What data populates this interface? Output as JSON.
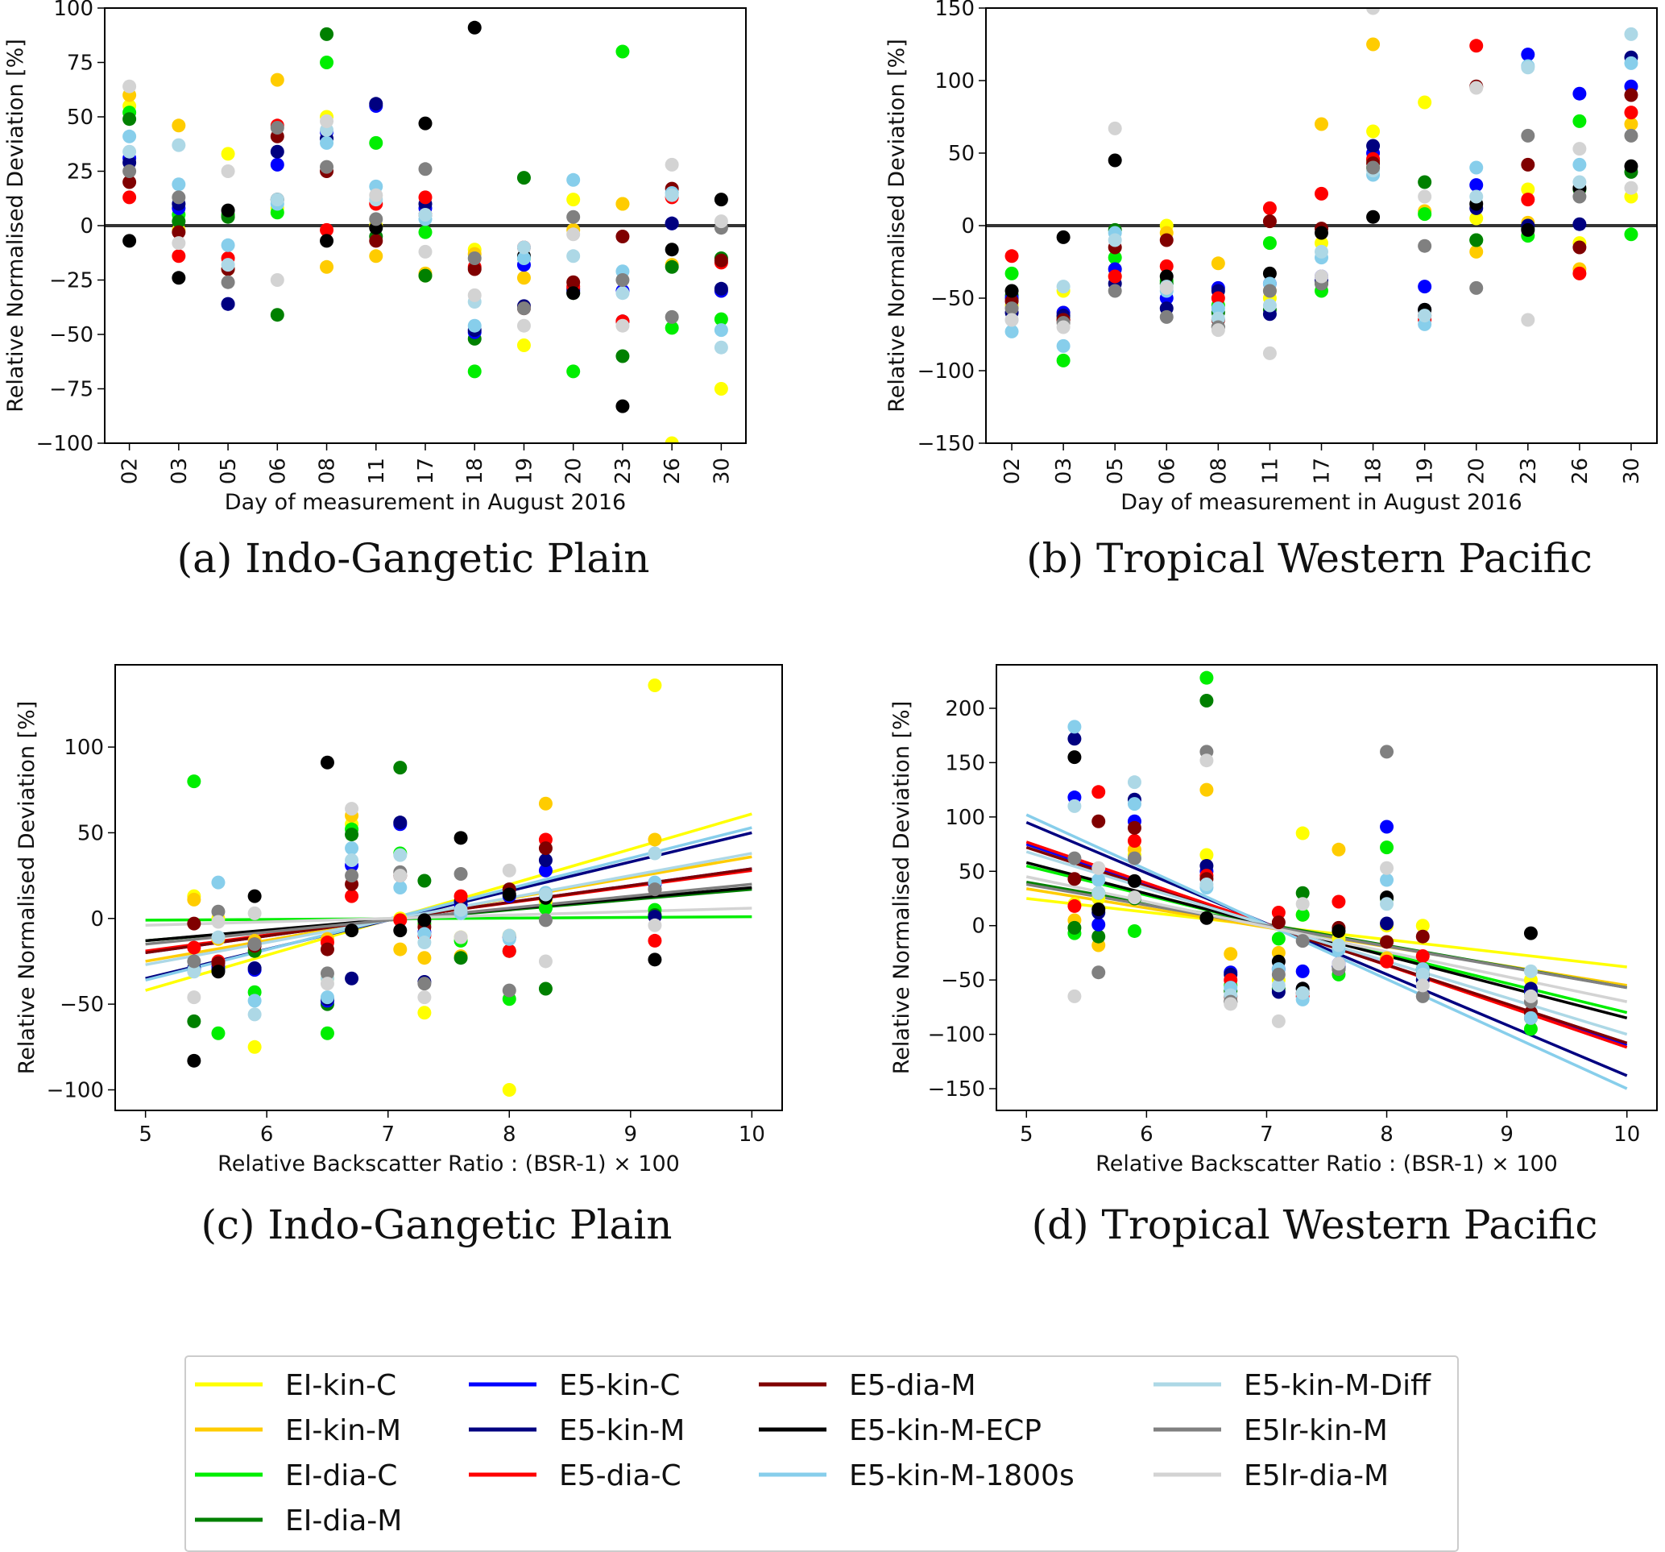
{
  "colors": {
    "EI-kin-C": "#ffff00",
    "EI-kin-M": "#ffcc00",
    "EI-dia-C": "#00ee00",
    "EI-dia-M": "#008000",
    "E5-kin-C": "#0000ff",
    "E5-kin-M": "#000080",
    "E5-dia-C": "#ff0000",
    "E5-dia-M": "#800000",
    "E5-kin-M-ECP": "#000000",
    "E5-kin-M-1800s": "#87ceeb",
    "E5-kin-M-Diff": "#add8e6",
    "E5lr-kin-M": "#808080",
    "E5lr-dia-M": "#d3d3d3"
  },
  "legend": {
    "entries": [
      "EI-kin-C",
      "EI-kin-M",
      "EI-dia-C",
      "EI-dia-M",
      "E5-kin-C",
      "E5-kin-M",
      "E5-dia-C",
      "E5-dia-M",
      "E5-kin-M-ECP",
      "E5-kin-M-1800s",
      "E5-kin-M-Diff",
      "E5lr-kin-M",
      "E5lr-dia-M"
    ]
  },
  "chart_data": [
    {
      "id": "a",
      "type": "scatter",
      "title": "(a) Indo-Gangetic Plain",
      "xlabel": "Day of measurement in August 2016",
      "ylabel": "Relative Normalised Deviation [%]",
      "categories": [
        "02",
        "03",
        "05",
        "06",
        "08",
        "11",
        "17",
        "18",
        "19",
        "20",
        "23",
        "26",
        "30"
      ],
      "ylim": [
        -100,
        100
      ],
      "yticks": [
        -100,
        -75,
        -50,
        -25,
        0,
        25,
        50,
        75,
        100
      ],
      "zero_line": true,
      "series": [
        {
          "name": "EI-kin-C",
          "values": [
            55,
            -2,
            33,
            8,
            50,
            0,
            -23,
            -11,
            -55,
            12,
            10,
            -100,
            -75
          ]
        },
        {
          "name": "EI-kin-M",
          "values": [
            60,
            46,
            -20,
            67,
            -19,
            -14,
            -22,
            -13,
            -24,
            -2,
            10,
            -18,
            -30
          ]
        },
        {
          "name": "EI-dia-C",
          "values": [
            52,
            5,
            5,
            6,
            75,
            38,
            -3,
            -67,
            -15,
            -67,
            80,
            -47,
            -43
          ]
        },
        {
          "name": "EI-dia-M",
          "values": [
            49,
            2,
            4,
            -41,
            88,
            -5,
            -23,
            -52,
            22,
            -31,
            -60,
            -19,
            -15
          ]
        },
        {
          "name": "E5-kin-C",
          "values": [
            31,
            8,
            -36,
            28,
            43,
            55,
            8,
            -49,
            -18,
            -30,
            -30,
            1,
            -30
          ]
        },
        {
          "name": "E5-kin-M",
          "values": [
            29,
            10,
            -36,
            34,
            40,
            56,
            10,
            -48,
            -37,
            -29,
            -44,
            1,
            -29
          ]
        },
        {
          "name": "E5-dia-C",
          "values": [
            13,
            -14,
            -15,
            46,
            -2,
            10,
            13,
            -19,
            -10,
            -28,
            -44,
            13,
            -17
          ]
        },
        {
          "name": "E5-dia-M",
          "values": [
            20,
            -3,
            -20,
            41,
            25,
            -7,
            5,
            -20,
            -38,
            -26,
            -5,
            17,
            -16
          ]
        },
        {
          "name": "E5-kin-M-ECP",
          "values": [
            -7,
            -24,
            7,
            12,
            -7,
            -1,
            47,
            91,
            -14,
            -31,
            -83,
            -11,
            12
          ]
        },
        {
          "name": "E5-kin-M-1800s",
          "values": [
            41,
            19,
            -9,
            10,
            38,
            18,
            3,
            -46,
            -15,
            21,
            -21,
            15,
            -48
          ]
        },
        {
          "name": "E5-kin-M-Diff",
          "values": [
            34,
            37,
            -18,
            12,
            44,
            12,
            5,
            -35,
            -10,
            -14,
            -31,
            14,
            -56
          ]
        },
        {
          "name": "E5lr-kin-M",
          "values": [
            25,
            13,
            -26,
            45,
            27,
            3,
            26,
            -15,
            -38,
            4,
            -25,
            -42,
            -1
          ]
        },
        {
          "name": "E5lr-dia-M",
          "values": [
            64,
            -8,
            25,
            -25,
            48,
            14,
            -12,
            -32,
            -46,
            -4,
            -46,
            28,
            2
          ]
        }
      ]
    },
    {
      "id": "b",
      "type": "scatter",
      "title": "(b) Tropical Western Pacific",
      "xlabel": "Day of measurement in August 2016",
      "ylabel": "Relative Normalised Deviation [%]",
      "categories": [
        "02",
        "03",
        "05",
        "06",
        "08",
        "11",
        "17",
        "18",
        "19",
        "20",
        "23",
        "26",
        "30"
      ],
      "ylim": [
        -150,
        150
      ],
      "yticks": [
        -150,
        -100,
        -50,
        0,
        50,
        100,
        150
      ],
      "zero_line": true,
      "series": [
        {
          "name": "EI-kin-C",
          "values": [
            -55,
            -45,
            -30,
            0,
            -55,
            -50,
            -12,
            65,
            85,
            5,
            25,
            -12,
            20
          ]
        },
        {
          "name": "EI-kin-M",
          "values": [
            -50,
            -60,
            -35,
            -5,
            -26,
            -45,
            70,
            125,
            10,
            -18,
            2,
            -30,
            70
          ]
        },
        {
          "name": "EI-dia-C",
          "values": [
            -33,
            -93,
            -22,
            -38,
            -55,
            -12,
            -45,
            40,
            8,
            -10,
            -7,
            72,
            -6
          ]
        },
        {
          "name": "EI-dia-M",
          "values": [
            -48,
            -63,
            -3,
            -40,
            -60,
            -58,
            -40,
            45,
            30,
            -10,
            -2,
            25,
            37
          ]
        },
        {
          "name": "E5-kin-C",
          "values": [
            -50,
            -60,
            -30,
            -50,
            -43,
            -40,
            -35,
            50,
            -42,
            28,
            118,
            91,
            96
          ]
        },
        {
          "name": "E5-kin-M",
          "values": [
            -60,
            -62,
            -40,
            -57,
            -45,
            -61,
            -38,
            55,
            -58,
            12,
            0,
            1,
            116
          ]
        },
        {
          "name": "E5-dia-C",
          "values": [
            -21,
            -65,
            -35,
            -28,
            -50,
            12,
            22,
            46,
            -65,
            124,
            18,
            -33,
            78
          ]
        },
        {
          "name": "E5-dia-M",
          "values": [
            -52,
            -65,
            -15,
            -10,
            -65,
            3,
            -2,
            43,
            -62,
            96,
            42,
            -15,
            90
          ]
        },
        {
          "name": "E5-kin-M-ECP",
          "values": [
            -45,
            -8,
            45,
            -35,
            -70,
            -33,
            -5,
            6,
            -58,
            15,
            -3,
            26,
            41
          ]
        },
        {
          "name": "E5-kin-M-1800s",
          "values": [
            -73,
            -83,
            -5,
            -45,
            -57,
            -40,
            -22,
            35,
            -68,
            40,
            110,
            42,
            112
          ]
        },
        {
          "name": "E5-kin-M-Diff",
          "values": [
            -65,
            -42,
            -10,
            -42,
            -64,
            -55,
            -18,
            38,
            -62,
            20,
            109,
            30,
            132
          ]
        },
        {
          "name": "E5lr-kin-M",
          "values": [
            -57,
            -67,
            -45,
            -63,
            -70,
            -45,
            -40,
            40,
            -14,
            -43,
            62,
            20,
            62
          ]
        },
        {
          "name": "E5lr-dia-M",
          "values": [
            -65,
            -70,
            67,
            -43,
            -72,
            -88,
            -35,
            150,
            20,
            95,
            -65,
            53,
            26
          ]
        }
      ]
    },
    {
      "id": "c",
      "type": "scatter",
      "title": "(c) Indo-Gangetic Plain",
      "xlabel": "Relative Backscatter Ratio : (BSR-1) × 100",
      "ylabel": "Relative Normalised Deviation [%]",
      "xlim": [
        4.75,
        10.25
      ],
      "ylim": [
        -112,
        148
      ],
      "xticks": [
        5,
        6,
        7,
        8,
        9,
        10
      ],
      "yticks": [
        -100,
        -50,
        0,
        50,
        100
      ],
      "x": [
        5.4,
        5.6,
        5.9,
        6.5,
        6.7,
        7.1,
        7.3,
        7.6,
        8.0,
        8.3,
        9.2
      ],
      "series": [
        {
          "name": "EI-kin-C",
          "y": [
            13,
            0,
            -75,
            -35,
            55,
            0,
            -55,
            -11,
            -100,
            10,
            136
          ],
          "fit": [
            -42,
            61
          ]
        },
        {
          "name": "EI-kin-M",
          "y": [
            11,
            -12,
            -13,
            -12,
            60,
            -18,
            -23,
            -22,
            -10,
            67,
            46
          ],
          "fit": [
            -25,
            36
          ]
        },
        {
          "name": "EI-dia-C",
          "y": [
            80,
            -67,
            -43,
            -67,
            52,
            38,
            -3,
            -13,
            -47,
            6,
            5
          ],
          "fit": [
            -1,
            1
          ]
        },
        {
          "name": "EI-dia-M",
          "y": [
            -60,
            -30,
            -19,
            -50,
            49,
            88,
            22,
            -23,
            -19,
            -41,
            2
          ],
          "fit": [
            -13,
            17
          ]
        },
        {
          "name": "E5-kin-C",
          "y": [
            -30,
            -28,
            -30,
            -48,
            31,
            55,
            -8,
            8,
            13,
            28,
            20
          ],
          "fit": [
            -20,
            29
          ]
        },
        {
          "name": "E5-kin-M",
          "y": [
            -29,
            -30,
            -29,
            -47,
            -35,
            56,
            -37,
            10,
            -11,
            34,
            1
          ],
          "fit": [
            -35,
            50
          ]
        },
        {
          "name": "E5-dia-C",
          "y": [
            -17,
            -25,
            -15,
            -14,
            13,
            -1,
            -10,
            13,
            -19,
            46,
            -13
          ],
          "fit": [
            -19,
            28
          ]
        },
        {
          "name": "E5-dia-M",
          "y": [
            -3,
            -26,
            -16,
            -18,
            20,
            25,
            -5,
            5,
            17,
            41,
            17
          ],
          "fit": [
            -20,
            29
          ]
        },
        {
          "name": "E5-kin-M-ECP",
          "y": [
            -83,
            -31,
            13,
            91,
            -7,
            -7,
            -1,
            47,
            14,
            12,
            -24
          ],
          "fit": [
            -13,
            18
          ]
        },
        {
          "name": "E5-kin-M-1800s",
          "y": [
            -30,
            21,
            -48,
            -46,
            41,
            18,
            -9,
            3,
            -12,
            15,
            21
          ],
          "fit": [
            -36,
            53
          ]
        },
        {
          "name": "E5-kin-M-Diff",
          "y": [
            -31,
            -11,
            -56,
            -35,
            34,
            37,
            -14,
            5,
            -10,
            14,
            38
          ],
          "fit": [
            -27,
            38
          ]
        },
        {
          "name": "E5lr-kin-M",
          "y": [
            -25,
            4,
            -15,
            -32,
            25,
            27,
            -38,
            26,
            -42,
            -1,
            17
          ],
          "fit": [
            -15,
            20
          ]
        },
        {
          "name": "E5lr-dia-M",
          "y": [
            -46,
            -2,
            3,
            -38,
            64,
            25,
            -46,
            -11,
            28,
            -25,
            -4
          ],
          "fit": [
            -4,
            6
          ]
        }
      ]
    },
    {
      "id": "d",
      "type": "scatter",
      "title": "(d) Tropical Western Pacific",
      "xlabel": "Relative Backscatter Ratio : (BSR-1) × 100",
      "ylabel": "Relative Normalised Deviation [%]",
      "xlim": [
        4.75,
        10.25
      ],
      "ylim": [
        -170,
        240
      ],
      "xticks": [
        5,
        6,
        7,
        8,
        9,
        10
      ],
      "yticks": [
        -150,
        -100,
        -50,
        0,
        50,
        100,
        150,
        200
      ],
      "x": [
        5.4,
        5.6,
        5.9,
        6.5,
        6.7,
        7.1,
        7.3,
        7.6,
        8.0,
        8.3,
        9.2
      ],
      "series": [
        {
          "name": "EI-kin-C",
          "y": [
            20,
            25,
            65,
            65,
            -55,
            -50,
            85,
            -12,
            0,
            0,
            -50
          ],
          "fit": [
            25,
            -38
          ]
        },
        {
          "name": "EI-kin-M",
          "y": [
            5,
            -18,
            70,
            125,
            -26,
            -25,
            10,
            70,
            -30,
            -45,
            -60
          ],
          "fit": [
            34,
            -55
          ]
        },
        {
          "name": "EI-dia-C",
          "y": [
            -7,
            30,
            -5,
            228,
            -55,
            -12,
            10,
            -45,
            72,
            -45,
            -95
          ],
          "fit": [
            55,
            -80
          ]
        },
        {
          "name": "EI-dia-M",
          "y": [
            -2,
            -10,
            25,
            207,
            -60,
            -58,
            30,
            -40,
            25,
            -40,
            -62
          ],
          "fit": [
            40,
            -57
          ]
        },
        {
          "name": "E5-kin-C",
          "y": [
            118,
            1,
            96,
            50,
            -43,
            -40,
            -42,
            -35,
            91,
            -45,
            -60
          ],
          "fit": [
            75,
            -110
          ]
        },
        {
          "name": "E5-kin-M",
          "y": [
            172,
            12,
            116,
            55,
            -45,
            -61,
            -58,
            -38,
            2,
            -50,
            -58
          ],
          "fit": [
            95,
            -138
          ]
        },
        {
          "name": "E5-dia-C",
          "y": [
            18,
            123,
            78,
            46,
            -50,
            12,
            -65,
            22,
            -33,
            -28,
            -85
          ],
          "fit": [
            77,
            -112
          ]
        },
        {
          "name": "E5-dia-M",
          "y": [
            43,
            96,
            90,
            43,
            -65,
            3,
            -62,
            -2,
            -15,
            -10,
            -80
          ],
          "fit": [
            72,
            -108
          ]
        },
        {
          "name": "E5-kin-M-ECP",
          "y": [
            155,
            15,
            41,
            7,
            -70,
            -33,
            -58,
            -5,
            26,
            -45,
            -7
          ],
          "fit": [
            58,
            -85
          ]
        },
        {
          "name": "E5-kin-M-1800s",
          "y": [
            183,
            42,
            112,
            35,
            -57,
            -40,
            -68,
            -22,
            42,
            -40,
            -85
          ],
          "fit": [
            102,
            -150
          ]
        },
        {
          "name": "E5-kin-M-Diff",
          "y": [
            110,
            30,
            132,
            38,
            -64,
            -55,
            -62,
            -18,
            20,
            -45,
            -42
          ],
          "fit": [
            68,
            -100
          ]
        },
        {
          "name": "E5lr-kin-M",
          "y": [
            62,
            -43,
            62,
            160,
            -70,
            -45,
            -14,
            -40,
            160,
            -65,
            -70
          ],
          "fit": [
            38,
            -57
          ]
        },
        {
          "name": "E5lr-dia-M",
          "y": [
            -65,
            53,
            26,
            152,
            -72,
            -88,
            20,
            -35,
            53,
            -55,
            -65
          ],
          "fit": [
            45,
            -70
          ]
        }
      ]
    }
  ]
}
